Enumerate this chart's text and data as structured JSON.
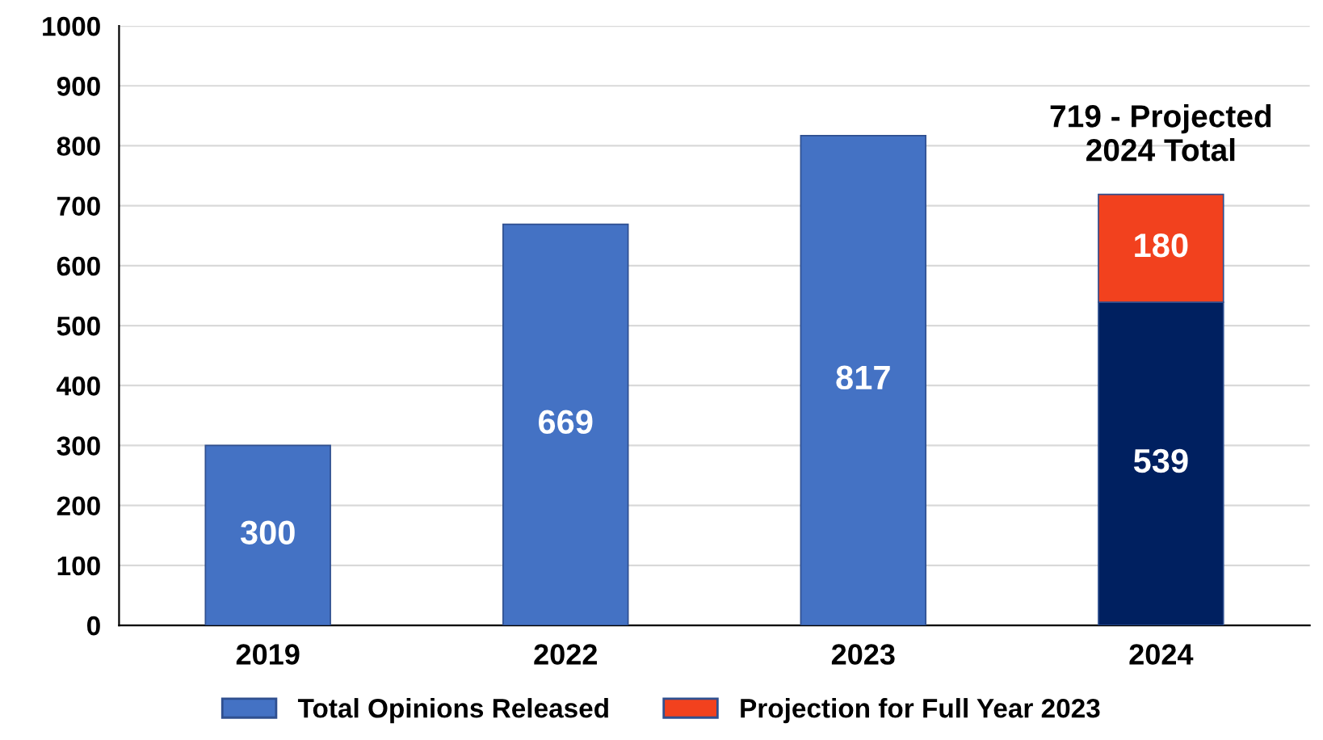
{
  "chart_data": {
    "type": "bar",
    "stacked": true,
    "categories": [
      "2019",
      "2022",
      "2023",
      "2024"
    ],
    "series": [
      {
        "name": "Total Opinions Released",
        "color": "#4472c4",
        "colors": [
          "#4472c4",
          "#4472c4",
          "#4472c4",
          "#002060"
        ],
        "values": [
          300,
          669,
          817,
          539
        ]
      },
      {
        "name": "Projection for Full Year 2023",
        "color": "#f2411e",
        "values": [
          null,
          null,
          null,
          180
        ]
      }
    ],
    "ylim": [
      0,
      1000
    ],
    "yticks": [
      0,
      100,
      200,
      300,
      400,
      500,
      600,
      700,
      800,
      900,
      1000
    ],
    "grid": "y",
    "legend": "bottom",
    "data_labels": true,
    "annotations": [
      {
        "text": "719 - Projected\n2024 Total",
        "x": "2024",
        "y": 719
      }
    ]
  }
}
